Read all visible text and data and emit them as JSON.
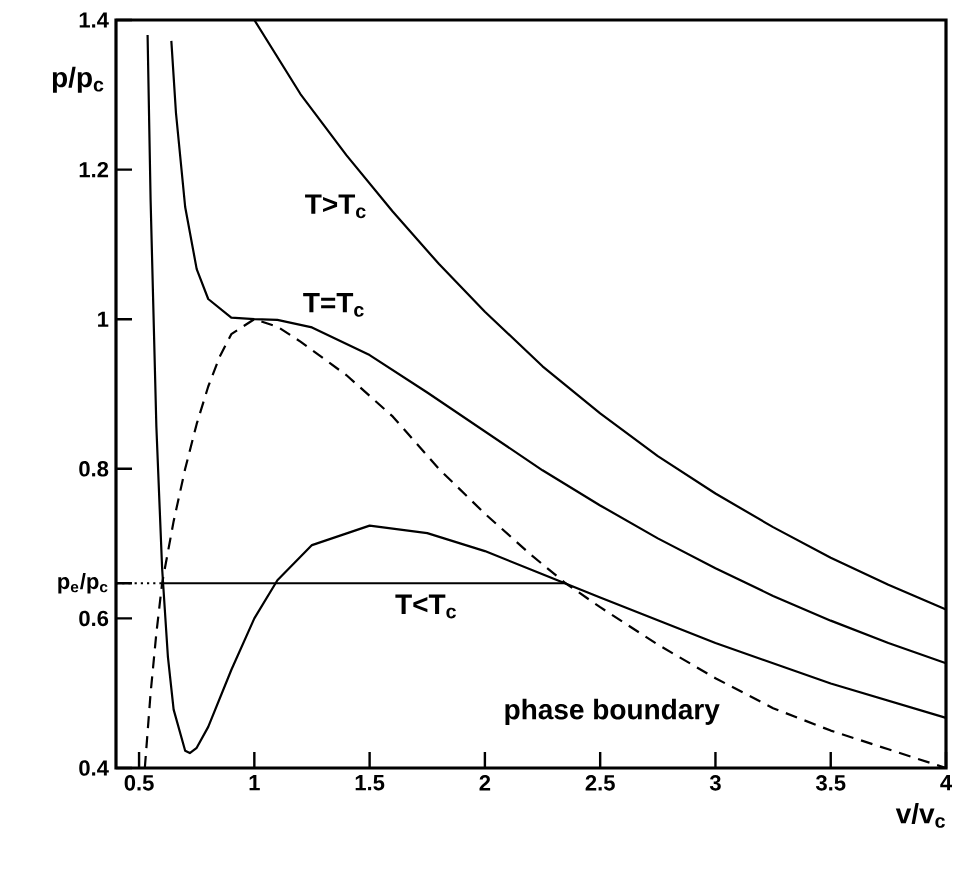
{
  "chart_data": {
    "type": "line",
    "xlabel": "v/v$_{c}$",
    "ylabel": "p/p$_{c}$",
    "xlim": [
      0.4,
      4
    ],
    "ylim": [
      0.4,
      1.4
    ],
    "xticks": [
      0.5,
      1,
      1.5,
      2,
      2.5,
      3,
      3.5,
      4
    ],
    "yticks": [
      0.4,
      0.6,
      {
        "value": 0.647,
        "label": "p$_{e}$/p$_{c}$"
      },
      0.8,
      1,
      1.2,
      1.4
    ],
    "marker": "none",
    "series": [
      {
        "name": "T>T$_{c}$",
        "color": "#000000",
        "line_style": "solid",
        "x": [
          1.0,
          1.2,
          1.4,
          1.6,
          1.8,
          2.0,
          2.25,
          2.5,
          2.75,
          3.0,
          3.25,
          3.5,
          3.75,
          4.0
        ],
        "values": [
          1.4,
          1.301,
          1.219,
          1.144,
          1.074,
          1.01,
          0.937,
          0.874,
          0.817,
          0.767,
          0.722,
          0.681,
          0.645,
          0.612
        ]
      },
      {
        "name": "T=T$_{c}$",
        "color": "#000000",
        "line_style": "solid",
        "x": [
          0.64,
          0.66,
          0.7,
          0.75,
          0.8,
          0.9,
          1.0,
          1.1,
          1.25,
          1.5,
          1.75,
          2.0,
          2.25,
          2.5,
          2.75,
          3.0,
          3.25,
          3.5,
          3.75,
          4.0
        ],
        "values": [
          1.372,
          1.276,
          1.15,
          1.067,
          1.027,
          1.002,
          1.0,
          0.999,
          0.989,
          0.952,
          0.902,
          0.85,
          0.798,
          0.751,
          0.707,
          0.667,
          0.63,
          0.597,
          0.567,
          0.54
        ]
      },
      {
        "name": "T<T$_{c}$",
        "color": "#000000",
        "line_style": "solid",
        "x": [
          0.537,
          0.55,
          0.575,
          0.6,
          0.625,
          0.65,
          0.7,
          0.72,
          0.75,
          0.8,
          0.9,
          1.0,
          1.1,
          1.25,
          1.5,
          1.75,
          2.0,
          2.25,
          2.5,
          3.0,
          3.5,
          4.0
        ],
        "values": [
          1.38,
          1.16,
          0.857,
          0.667,
          0.549,
          0.478,
          0.423,
          0.42,
          0.427,
          0.455,
          0.531,
          0.6,
          0.651,
          0.698,
          0.724,
          0.714,
          0.69,
          0.659,
          0.628,
          0.567,
          0.513,
          0.467
        ]
      },
      {
        "name": "phase boundary",
        "color": "#000000",
        "line_style": "dashed",
        "x": [
          0.525,
          0.55,
          0.575,
          0.6,
          0.65,
          0.7,
          0.75,
          0.8,
          0.85,
          0.9,
          1.0,
          1.1,
          1.2,
          1.4,
          1.6,
          1.8,
          2.0,
          2.2,
          2.35,
          2.5,
          2.75,
          3.0,
          3.25,
          3.5,
          3.75,
          4.0
        ],
        "values": [
          0.4,
          0.5,
          0.58,
          0.647,
          0.73,
          0.8,
          0.86,
          0.91,
          0.95,
          0.98,
          1.0,
          0.99,
          0.97,
          0.925,
          0.87,
          0.8,
          0.74,
          0.685,
          0.647,
          0.615,
          0.565,
          0.52,
          0.48,
          0.45,
          0.425,
          0.4
        ]
      },
      {
        "color": "#000000",
        "line_style": "solid",
        "x": [
          0.6,
          2.35
        ],
        "values": [
          0.647,
          0.647
        ]
      },
      {
        "color": "#000000",
        "line_style": "dotted",
        "x": [
          0.4,
          0.6
        ],
        "values": [
          0.647,
          0.647
        ]
      }
    ]
  }
}
